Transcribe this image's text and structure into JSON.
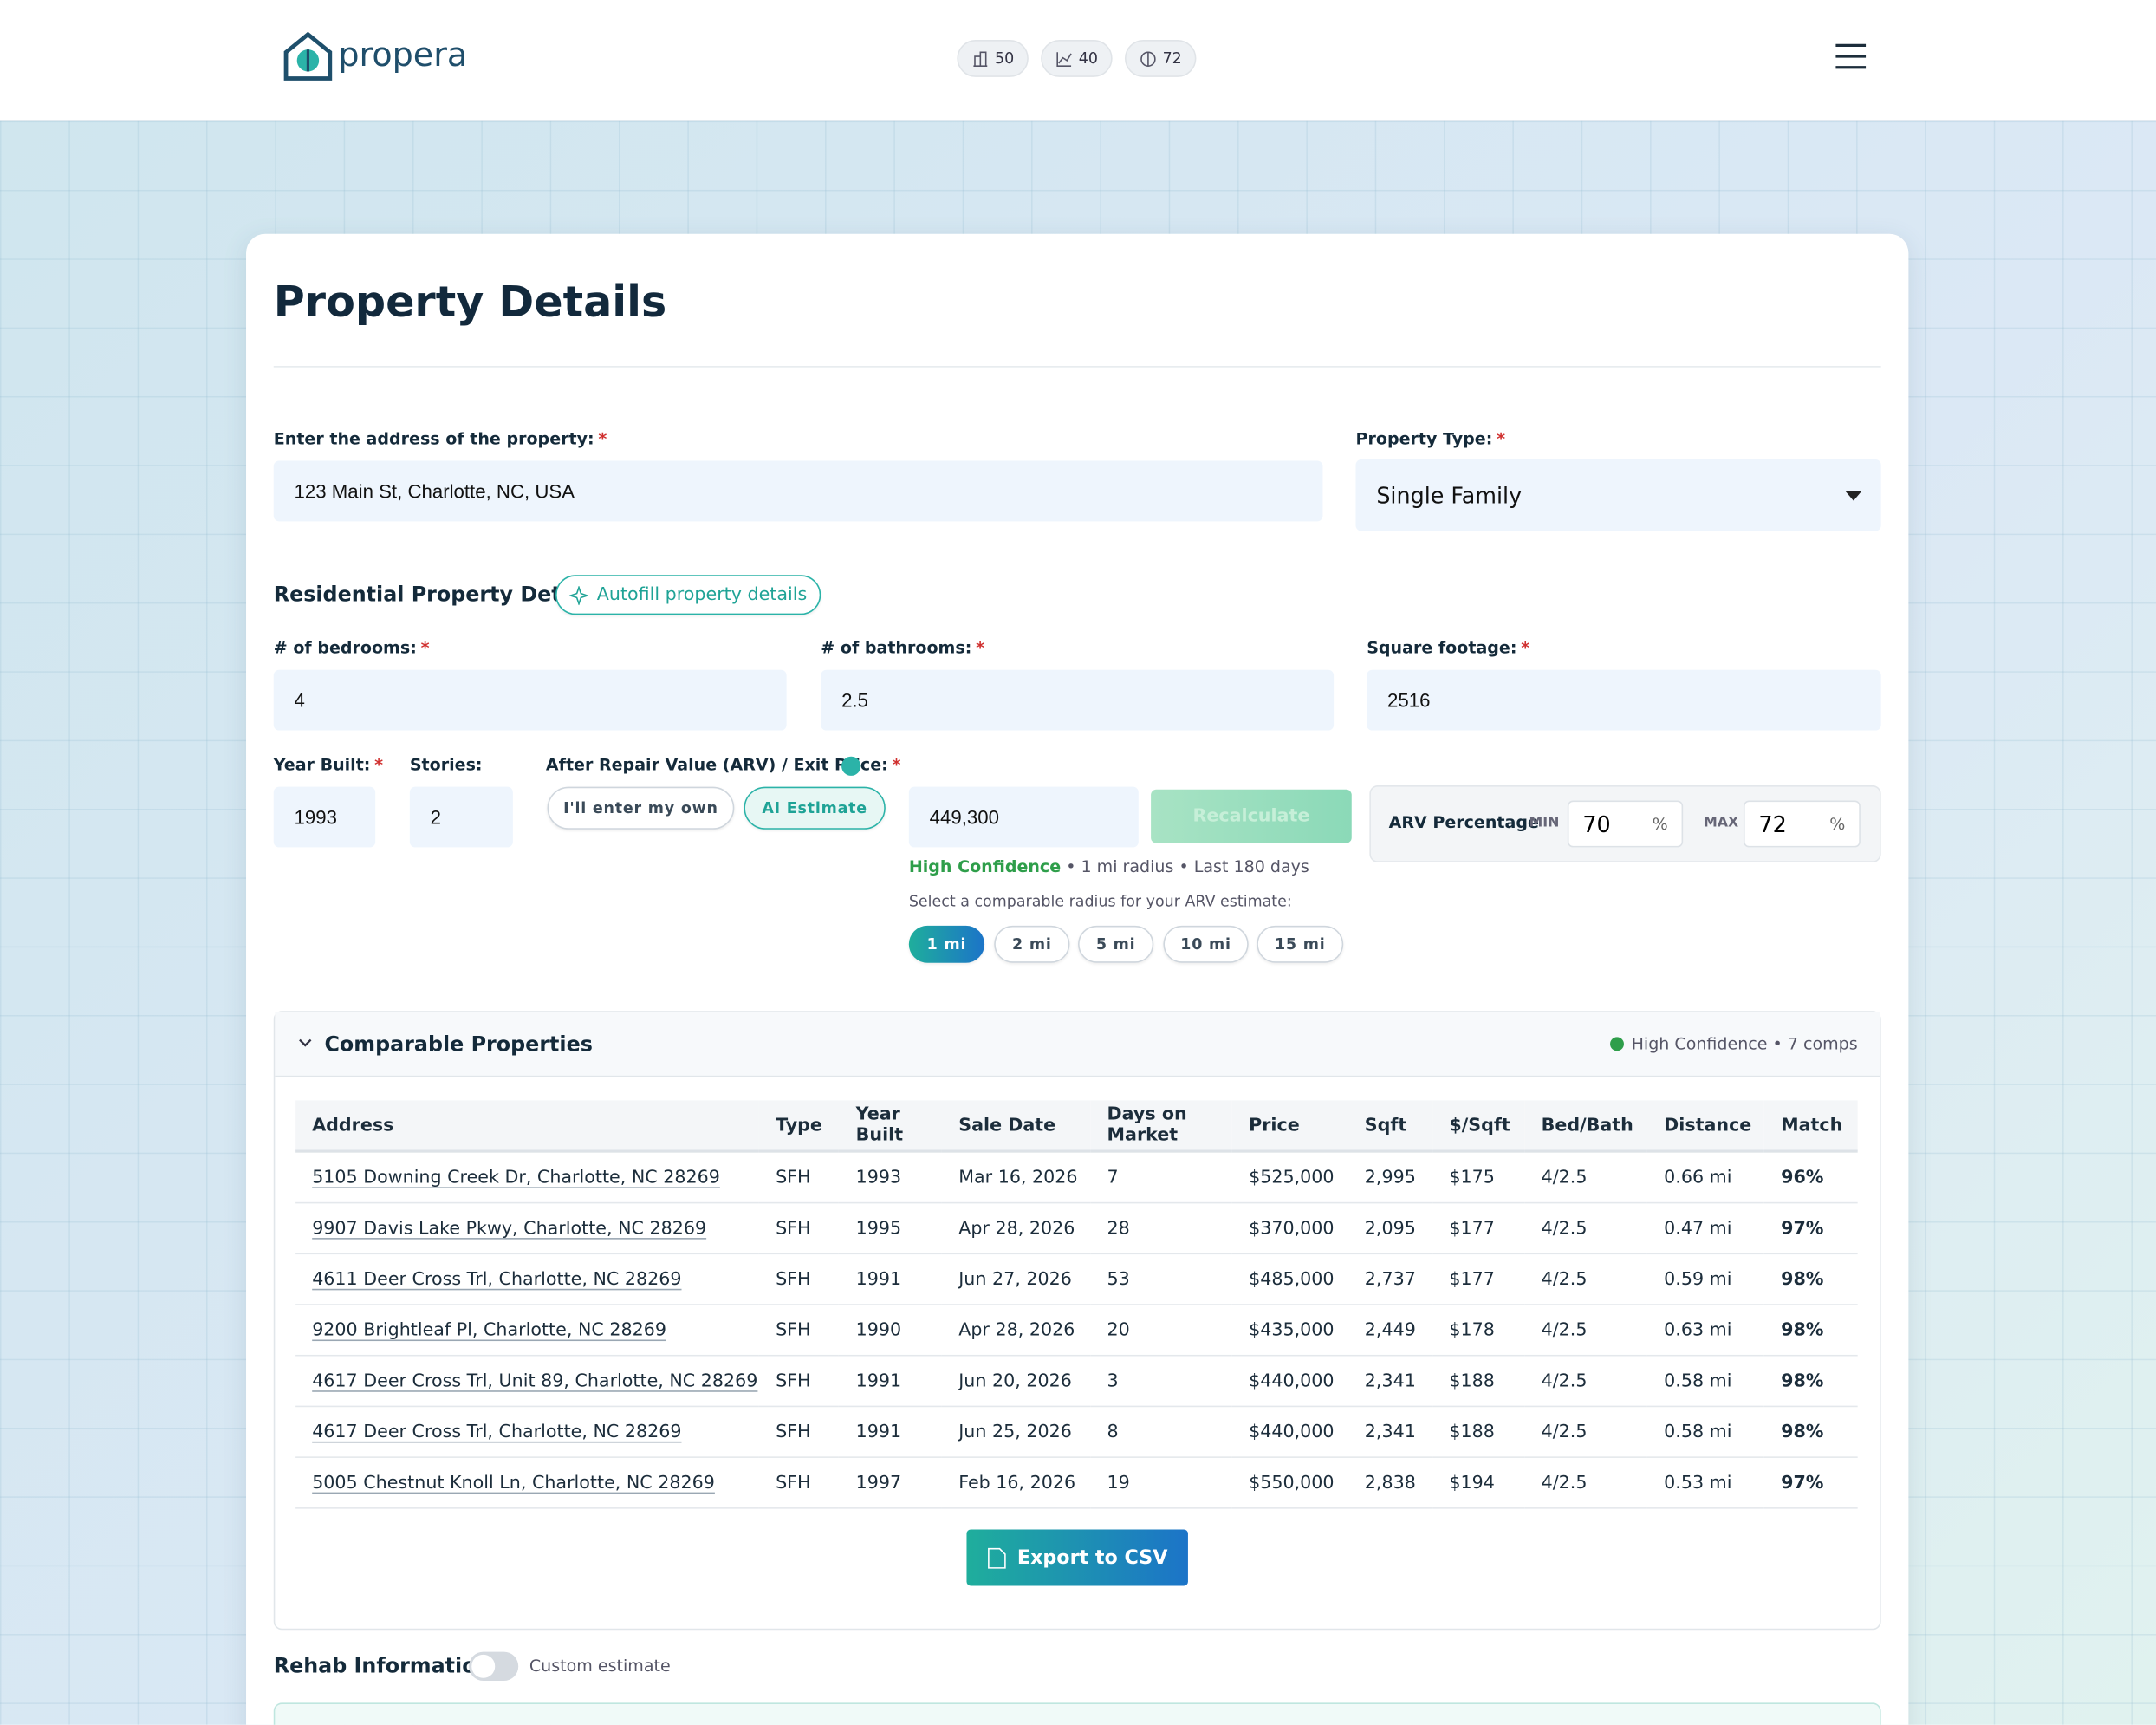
{
  "header": {
    "logo": "propera",
    "badges": [
      50,
      40,
      72
    ]
  },
  "form": {
    "title": "Property Details",
    "required_mark": "*",
    "address": {
      "label": "Enter the address of the property:",
      "value": "123 Main St, Charlotte, NC, USA"
    },
    "property_type": {
      "label": "Property Type:",
      "value": "Single Family"
    },
    "residential": {
      "title": "Residential Property Details",
      "autofill": "Autofill property details"
    },
    "bedrooms": {
      "label": "# of bedrooms:",
      "value": "4"
    },
    "bathrooms": {
      "label": "# of bathrooms:",
      "value": "2.5"
    },
    "sqft": {
      "label": "Square footage:",
      "value": "2516"
    },
    "year_built": {
      "label": "Year Built:",
      "value": "1993"
    },
    "stories": {
      "label": "Stories:",
      "value": "2"
    },
    "arv": {
      "label": "After Repair Value (ARV) / Exit Price:",
      "own": "I'll enter my own",
      "ai": "AI Estimate",
      "value": "449,300",
      "recalc": "Recalculate",
      "confidence": "High Confidence",
      "confidence_detail": "• 1 mi radius • Last 180 days",
      "radius_prompt": "Select a comparable radius for your ARV estimate:",
      "radii": [
        "1 mi",
        "2 mi",
        "5 mi",
        "10 mi",
        "15 mi"
      ]
    },
    "arv_percentage": {
      "label": "ARV Percentage",
      "min_label": "MIN",
      "min": "70",
      "max_label": "MAX",
      "max": "72",
      "unit": "%"
    }
  },
  "comps": {
    "title": "Comparable Properties",
    "summary": "High Confidence • 7 comps",
    "columns": [
      "Address",
      "Type",
      "Year Built",
      "Sale Date",
      "Days on Market",
      "Price",
      "Sqft",
      "$/Sqft",
      "Bed/Bath",
      "Distance",
      "Match"
    ],
    "rows": [
      [
        "5105 Downing Creek Dr, Charlotte, NC 28269",
        "SFH",
        "1993",
        "Mar 16, 2026",
        "7",
        "$525,000",
        "2,995",
        "$175",
        "4/2.5",
        "0.66 mi",
        "96%"
      ],
      [
        "9907 Davis Lake Pkwy, Charlotte, NC 28269",
        "SFH",
        "1995",
        "Apr 28, 2026",
        "28",
        "$370,000",
        "2,095",
        "$177",
        "4/2.5",
        "0.47 mi",
        "97%"
      ],
      [
        "4611 Deer Cross Trl, Charlotte, NC 28269",
        "SFH",
        "1991",
        "Jun 27, 2026",
        "53",
        "$485,000",
        "2,737",
        "$177",
        "4/2.5",
        "0.59 mi",
        "98%"
      ],
      [
        "9200 Brightleaf Pl, Charlotte, NC 28269",
        "SFH",
        "1990",
        "Apr 28, 2026",
        "20",
        "$435,000",
        "2,449",
        "$178",
        "4/2.5",
        "0.63 mi",
        "98%"
      ],
      [
        "4617 Deer Cross Trl, Unit 89, Charlotte, NC 28269",
        "SFH",
        "1991",
        "Jun 20, 2026",
        "3",
        "$440,000",
        "2,341",
        "$188",
        "4/2.5",
        "0.58 mi",
        "98%"
      ],
      [
        "4617 Deer Cross Trl, Charlotte, NC 28269",
        "SFH",
        "1991",
        "Jun 25, 2026",
        "8",
        "$440,000",
        "2,341",
        "$188",
        "4/2.5",
        "0.58 mi",
        "98%"
      ],
      [
        "5005 Chestnut Knoll Ln, Charlotte, NC 28269",
        "SFH",
        "1997",
        "Feb 16, 2026",
        "19",
        "$550,000",
        "2,838",
        "$194",
        "4/2.5",
        "0.53 mi",
        "97%"
      ]
    ],
    "export": "Export to CSV"
  },
  "rehab": {
    "title": "Rehab Information",
    "toggle": "Custom estimate"
  }
}
